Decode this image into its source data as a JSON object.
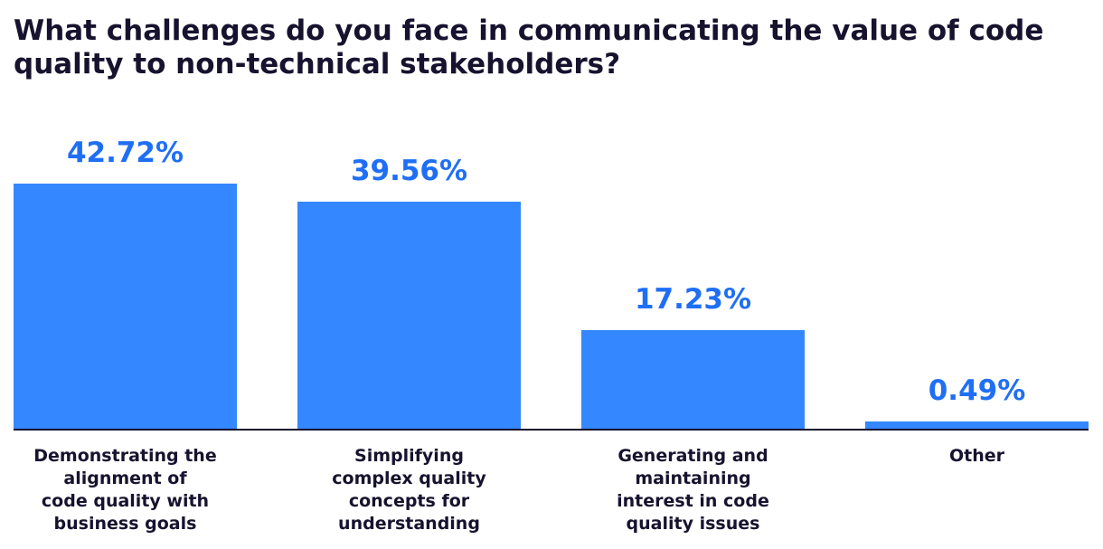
{
  "chart_data": {
    "type": "bar",
    "title": "What challenges do you face in communicating the value of code quality to non-technical stakeholders?",
    "categories": [
      "Demonstrating the\nalignment of\ncode quality with\nbusiness goals",
      "Simplifying\ncomplex quality\nconcepts for\nunderstanding",
      "Generating and\nmaintaining\ninterest in code\nquality issues",
      "Other"
    ],
    "values": [
      42.72,
      39.56,
      17.23,
      0.49
    ],
    "value_labels": [
      "42.72%",
      "39.56%",
      "17.23%",
      "0.49%"
    ],
    "color": "#3587ff"
  }
}
